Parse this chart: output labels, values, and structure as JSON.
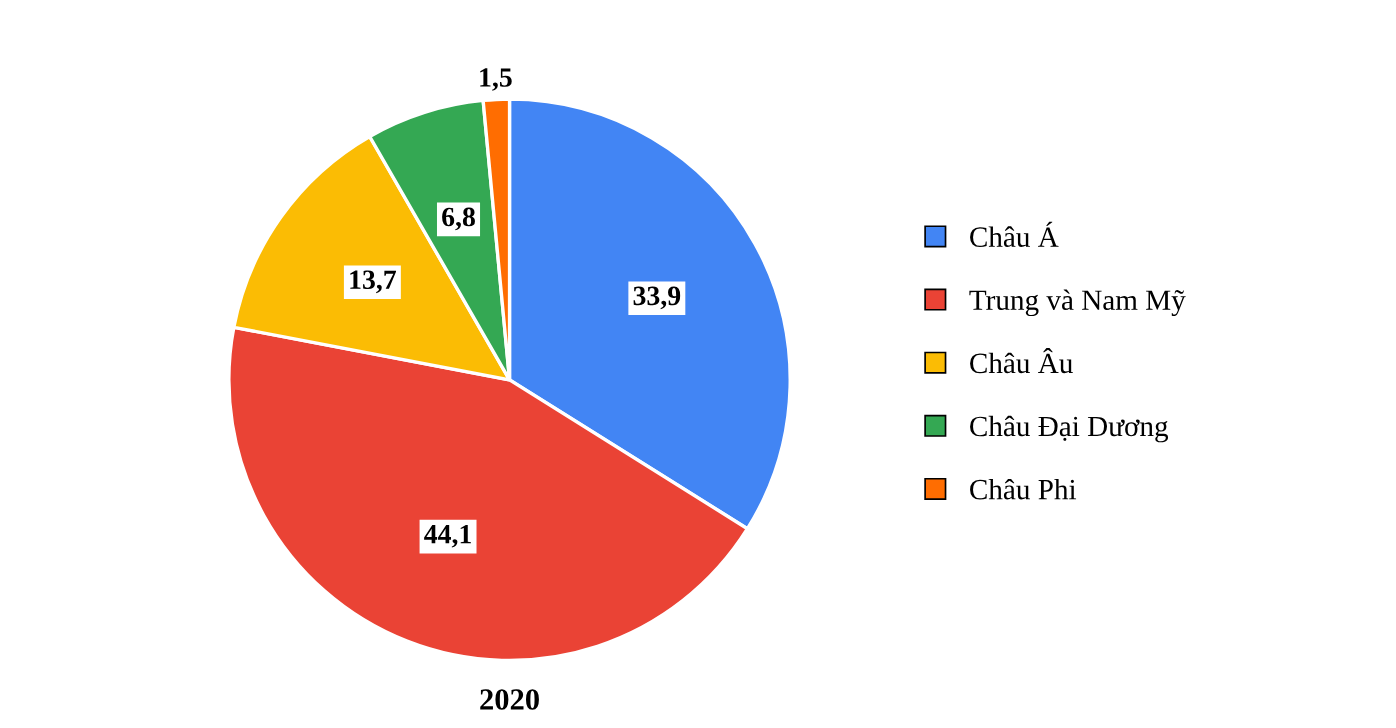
{
  "chart_data": {
    "type": "pie",
    "title": "2020",
    "categories": [
      "Châu Á",
      "Trung và Nam Mỹ",
      "Châu Âu",
      "Châu Đại Dương",
      "Châu Phi"
    ],
    "values": [
      33.9,
      44.1,
      13.7,
      6.8,
      1.5
    ],
    "value_labels": [
      "33,9",
      "44,1",
      "13,7",
      "6,8",
      "1,5"
    ],
    "colors": [
      "#4285f4",
      "#ea4335",
      "#fbbc04",
      "#34a853",
      "#ff6d01"
    ],
    "legend": "right"
  }
}
